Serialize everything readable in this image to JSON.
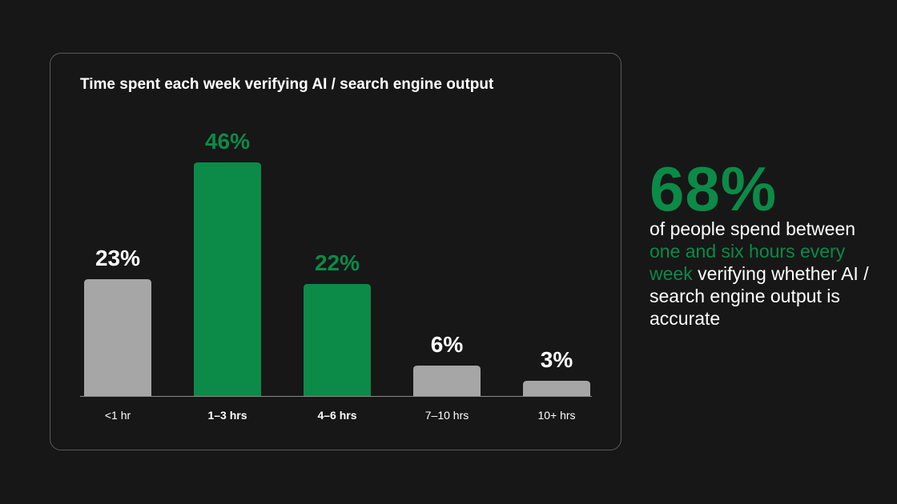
{
  "colors": {
    "background": "#171717",
    "highlight": "#0c8a47",
    "muted_bar": "#a6a6a6",
    "text": "#ffffff"
  },
  "chart_data": {
    "type": "bar",
    "title": "Time spent each week verifying AI / search engine output",
    "categories": [
      "<1 hr",
      "1–3 hrs",
      "4–6 hrs",
      "7–10 hrs",
      "10+ hrs"
    ],
    "values": [
      23,
      46,
      22,
      6,
      3
    ],
    "value_labels": [
      "23%",
      "46%",
      "22%",
      "6%",
      "3%"
    ],
    "highlighted": [
      false,
      true,
      true,
      false,
      false
    ],
    "unit": "%",
    "ylim": [
      0,
      46
    ],
    "grid": false,
    "legend": "none"
  },
  "stat": {
    "value": "68%",
    "text_before": "of people spend between ",
    "text_highlight": "one and six hours every week",
    "text_after": " verifying whether AI / search engine output is accurate"
  }
}
